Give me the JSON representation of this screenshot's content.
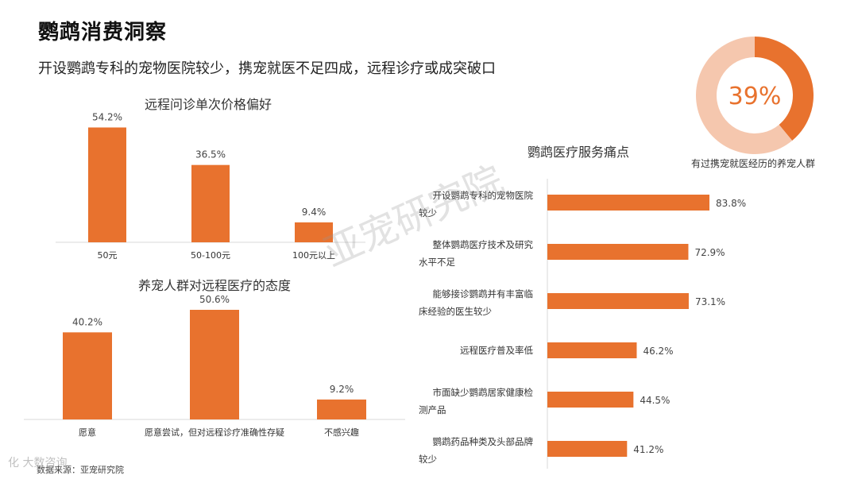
{
  "header": {
    "title": "鹦鹉消费洞察",
    "subtitle": "开设鹦鹉专科的宠物医院较少，携宠就医不足四成，远程诊疗或成突破口"
  },
  "donut": {
    "label": "39%",
    "caption": "有过携宠就医经历的养宠人群"
  },
  "footer": {
    "source": "数据来源：亚宠研究院",
    "watermark": "亚宠研究院",
    "corner_logo": "化 大数咨询"
  },
  "colors": {
    "accent": "#E8722E",
    "donut_rest": "#F5C7AE"
  },
  "chart_data": [
    {
      "type": "bar",
      "title": "远程问诊单次价格偏好",
      "categories": [
        "50元",
        "50-100元",
        "100元以上"
      ],
      "values": [
        54.2,
        36.5,
        9.4
      ],
      "value_labels": [
        "54.2%",
        "36.5%",
        "9.4%"
      ],
      "ylim": [
        0,
        60
      ]
    },
    {
      "type": "bar",
      "title": "养宠人群对远程医疗的态度",
      "categories": [
        "愿意",
        "愿意尝试，但对远程诊疗准确性存疑",
        "不感兴趣"
      ],
      "values": [
        40.2,
        50.6,
        9.2
      ],
      "value_labels": [
        "40.2%",
        "50.6%",
        "9.2%"
      ],
      "ylim": [
        0,
        55
      ]
    },
    {
      "type": "bar",
      "orientation": "horizontal",
      "title": "鹦鹉医疗服务痛点",
      "categories": [
        [
          "开设鹦鹉专科的宠物医院",
          "较少"
        ],
        [
          "整体鹦鹉医疗技术及研究",
          "水平不足"
        ],
        [
          "能够接诊鹦鹉并有丰富临",
          "床经验的医生较少"
        ],
        [
          "远程医疗普及率低"
        ],
        [
          "市面缺少鹦鹉居家健康检",
          "测产品"
        ],
        [
          "鹦鹉药品种类及头部品牌",
          "较少"
        ]
      ],
      "values": [
        83.8,
        72.9,
        73.1,
        46.2,
        44.5,
        41.2
      ],
      "value_labels": [
        "83.8%",
        "72.9%",
        "73.1%",
        "46.2%",
        "44.5%",
        "41.2%"
      ],
      "xlim": [
        0,
        100
      ]
    },
    {
      "type": "pie",
      "values": [
        39,
        61
      ],
      "center_label": "39%"
    }
  ]
}
